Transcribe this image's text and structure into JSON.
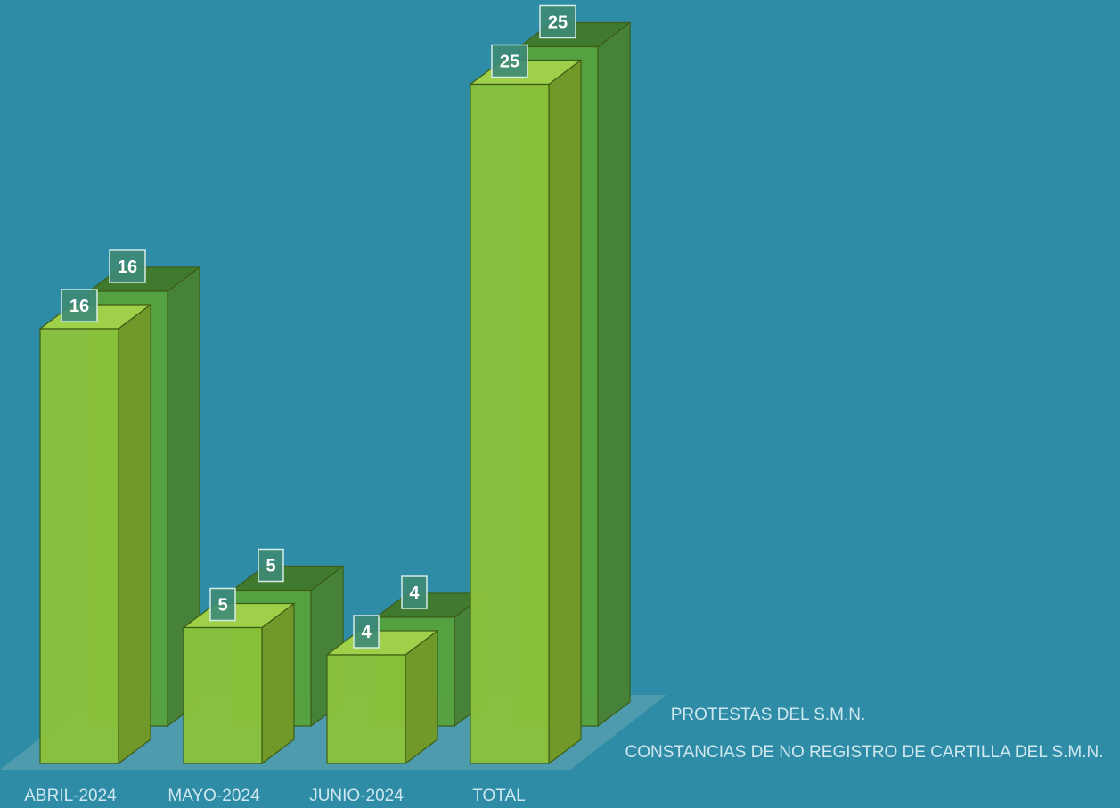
{
  "colors": {
    "background": "#2e8ca7",
    "front_series_face": "#8cc23a",
    "front_series_side": "#71992a",
    "front_series_top": "#9fd04a",
    "back_series_face": "#56a23c",
    "back_series_side": "#46823a",
    "back_series_top": "#3f7a2e",
    "label_box_fill": "#3e8a76",
    "label_box_stroke": "#d6ece6",
    "floor": "#6aa7b5"
  },
  "chart_data": {
    "type": "bar",
    "style": "3d-clustered-depth",
    "categories": [
      "ABRIL-2024",
      "MAYO-2024",
      "JUNIO-2024",
      "TOTAL"
    ],
    "series": [
      {
        "name": "CONSTANCIAS DE NO REGISTRO DE CARTILLA DEL S.M.N.",
        "values": [
          16,
          5,
          4,
          25
        ],
        "position": "front"
      },
      {
        "name": "PROTESTAS DEL S.M.N.",
        "values": [
          16,
          5,
          4,
          25
        ],
        "position": "back"
      }
    ],
    "data_labels": true,
    "grid": false,
    "legend": "right, series names at depth axis",
    "ylim": [
      0,
      25
    ]
  }
}
